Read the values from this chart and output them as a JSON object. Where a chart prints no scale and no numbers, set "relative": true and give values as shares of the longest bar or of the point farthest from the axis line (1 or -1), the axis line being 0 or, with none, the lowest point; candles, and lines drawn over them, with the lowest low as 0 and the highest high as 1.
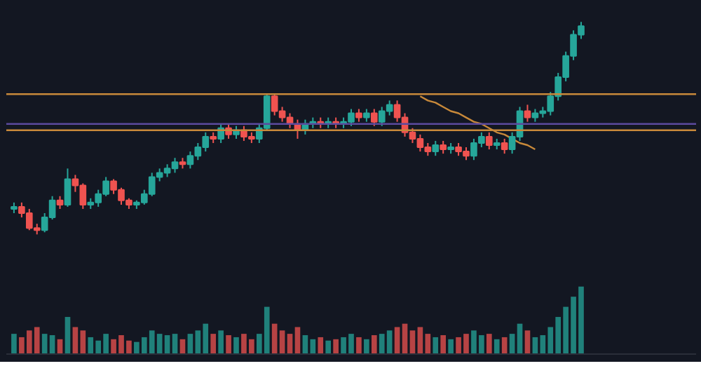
{
  "chart_data": [
    {
      "type": "candlestick",
      "relative": true,
      "colors": [
        "#26a69a",
        "#ef5350",
        "#ef5350",
        "#ef5350",
        "#26a69a",
        "#26a69a",
        "#ef5350",
        "#26a69a",
        "#ef5350",
        "#ef5350",
        "#26a69a",
        "#26a69a",
        "#26a69a",
        "#ef5350",
        "#ef5350",
        "#ef5350",
        "#26a69a",
        "#26a69a",
        "#26a69a",
        "#26a69a",
        "#26a69a",
        "#26a69a",
        "#ef5350",
        "#26a69a",
        "#26a69a",
        "#26a69a",
        "#ef5350",
        "#26a69a",
        "#ef5350",
        "#26a69a",
        "#ef5350",
        "#ef5350",
        "#26a69a",
        "#26a69a",
        "#ef5350",
        "#ef5350",
        "#ef5350",
        "#ef5350",
        "#26a69a",
        "#26a69a",
        "#ef5350",
        "#26a69a",
        "#ef5350",
        "#26a69a",
        "#26a69a",
        "#ef5350",
        "#26a69a",
        "#ef5350",
        "#26a69a",
        "#26a69a",
        "#ef5350",
        "#ef5350",
        "#ef5350",
        "#ef5350",
        "#ef5350",
        "#26a69a",
        "#ef5350",
        "#26a69a",
        "#ef5350",
        "#ef5350",
        "#26a69a",
        "#26a69a",
        "#ef5350",
        "#26a69a",
        "#ef5350",
        "#26a69a",
        "#26a69a",
        "#ef5350",
        "#26a69a",
        "#26a69a",
        "#26a69a",
        "#26a69a",
        "#26a69a",
        "#26a69a",
        "#26a69a"
      ],
      "categories": [
        null,
        null,
        null,
        null,
        null,
        null,
        null,
        null,
        null,
        null,
        null,
        null,
        null,
        null,
        null,
        null,
        null,
        null,
        null,
        null,
        null,
        null,
        null,
        null,
        null,
        null,
        null,
        null,
        null,
        null,
        null,
        null,
        null,
        null,
        null,
        null,
        null,
        null,
        null,
        null,
        null,
        null,
        null,
        null,
        null,
        null,
        null,
        null,
        null,
        null,
        null,
        null,
        null,
        null,
        null,
        null,
        null,
        null,
        null,
        null,
        null,
        null,
        null,
        null,
        null,
        null,
        null,
        null,
        null,
        null,
        null,
        null,
        null,
        null,
        null
      ],
      "ohlc": [
        [
          0.12,
          0.15,
          0.1,
          0.13
        ],
        [
          0.13,
          0.15,
          0.08,
          0.1
        ],
        [
          0.1,
          0.12,
          0.02,
          0.03
        ],
        [
          0.03,
          0.05,
          0.0,
          0.02
        ],
        [
          0.02,
          0.1,
          0.01,
          0.08
        ],
        [
          0.08,
          0.18,
          0.07,
          0.16
        ],
        [
          0.16,
          0.18,
          0.12,
          0.14
        ],
        [
          0.14,
          0.31,
          0.13,
          0.26
        ],
        [
          0.26,
          0.28,
          0.2,
          0.23
        ],
        [
          0.23,
          0.24,
          0.12,
          0.14
        ],
        [
          0.14,
          0.17,
          0.12,
          0.15
        ],
        [
          0.15,
          0.21,
          0.13,
          0.19
        ],
        [
          0.19,
          0.27,
          0.18,
          0.25
        ],
        [
          0.25,
          0.26,
          0.19,
          0.21
        ],
        [
          0.21,
          0.22,
          0.14,
          0.16
        ],
        [
          0.16,
          0.17,
          0.12,
          0.14
        ],
        [
          0.14,
          0.16,
          0.12,
          0.15
        ],
        [
          0.15,
          0.21,
          0.14,
          0.19
        ],
        [
          0.19,
          0.29,
          0.18,
          0.27
        ],
        [
          0.27,
          0.31,
          0.25,
          0.29
        ],
        [
          0.29,
          0.33,
          0.27,
          0.31
        ],
        [
          0.31,
          0.36,
          0.29,
          0.34
        ],
        [
          0.34,
          0.36,
          0.31,
          0.33
        ],
        [
          0.33,
          0.39,
          0.31,
          0.37
        ],
        [
          0.37,
          0.43,
          0.35,
          0.41
        ],
        [
          0.41,
          0.48,
          0.39,
          0.46
        ],
        [
          0.46,
          0.48,
          0.43,
          0.45
        ],
        [
          0.45,
          0.52,
          0.43,
          0.5
        ],
        [
          0.5,
          0.52,
          0.45,
          0.47
        ],
        [
          0.47,
          0.51,
          0.45,
          0.49
        ],
        [
          0.49,
          0.51,
          0.44,
          0.46
        ],
        [
          0.46,
          0.48,
          0.43,
          0.45
        ],
        [
          0.45,
          0.52,
          0.43,
          0.5
        ],
        [
          0.5,
          0.66,
          0.49,
          0.65
        ],
        [
          0.65,
          0.66,
          0.56,
          0.58
        ],
        [
          0.58,
          0.6,
          0.53,
          0.55
        ],
        [
          0.55,
          0.57,
          0.5,
          0.52
        ],
        [
          0.52,
          0.54,
          0.45,
          0.49
        ],
        [
          0.49,
          0.54,
          0.47,
          0.52
        ],
        [
          0.52,
          0.55,
          0.5,
          0.53
        ],
        [
          0.53,
          0.55,
          0.5,
          0.52
        ],
        [
          0.52,
          0.55,
          0.5,
          0.53
        ],
        [
          0.53,
          0.55,
          0.5,
          0.52
        ],
        [
          0.52,
          0.55,
          0.5,
          0.53
        ],
        [
          0.53,
          0.59,
          0.51,
          0.57
        ],
        [
          0.57,
          0.59,
          0.53,
          0.55
        ],
        [
          0.55,
          0.59,
          0.53,
          0.57
        ],
        [
          0.57,
          0.59,
          0.51,
          0.53
        ],
        [
          0.53,
          0.6,
          0.51,
          0.58
        ],
        [
          0.58,
          0.63,
          0.56,
          0.61
        ],
        [
          0.61,
          0.63,
          0.53,
          0.55
        ],
        [
          0.55,
          0.57,
          0.46,
          0.48
        ],
        [
          0.48,
          0.5,
          0.43,
          0.45
        ],
        [
          0.45,
          0.47,
          0.39,
          0.41
        ],
        [
          0.41,
          0.43,
          0.37,
          0.39
        ],
        [
          0.39,
          0.44,
          0.37,
          0.42
        ],
        [
          0.42,
          0.44,
          0.38,
          0.4
        ],
        [
          0.4,
          0.43,
          0.38,
          0.41
        ],
        [
          0.41,
          0.43,
          0.37,
          0.39
        ],
        [
          0.39,
          0.41,
          0.35,
          0.37
        ],
        [
          0.37,
          0.45,
          0.35,
          0.43
        ],
        [
          0.43,
          0.48,
          0.41,
          0.46
        ],
        [
          0.46,
          0.48,
          0.4,
          0.42
        ],
        [
          0.42,
          0.45,
          0.4,
          0.43
        ],
        [
          0.43,
          0.45,
          0.38,
          0.4
        ],
        [
          0.4,
          0.48,
          0.38,
          0.46
        ],
        [
          0.46,
          0.6,
          0.44,
          0.58
        ],
        [
          0.58,
          0.61,
          0.53,
          0.55
        ],
        [
          0.55,
          0.59,
          0.53,
          0.57
        ],
        [
          0.57,
          0.6,
          0.55,
          0.58
        ],
        [
          0.58,
          0.67,
          0.56,
          0.65
        ],
        [
          0.65,
          0.76,
          0.63,
          0.74
        ],
        [
          0.74,
          0.86,
          0.72,
          0.84
        ],
        [
          0.84,
          0.96,
          0.82,
          0.94
        ],
        [
          0.94,
          1.0,
          0.92,
          0.98
        ]
      ],
      "series": [
        {
          "type": "line",
          "color": "#c8893a",
          "values": [
            null,
            null,
            null,
            null,
            null,
            null,
            null,
            null,
            null,
            null,
            null,
            null,
            null,
            null,
            null,
            null,
            null,
            null,
            null,
            null,
            null,
            null,
            null,
            null,
            null,
            null,
            null,
            null,
            null,
            null,
            null,
            null,
            null,
            null,
            null,
            null,
            null,
            null,
            null,
            null,
            null,
            null,
            null,
            null,
            null,
            null,
            null,
            null,
            null,
            null,
            null,
            null,
            null,
            0.65,
            0.63,
            0.62,
            0.6,
            0.58,
            0.57,
            0.55,
            0.53,
            0.52,
            0.5,
            0.48,
            0.47,
            0.45,
            0.43,
            0.42,
            0.4,
            null,
            null,
            null,
            null,
            null,
            null
          ]
        }
      ],
      "ref_lines": [
        {
          "axis": "y",
          "value": 0.66,
          "color": "#c8893a"
        },
        {
          "axis": "y",
          "value": 0.49,
          "color": "#c8893a"
        },
        {
          "axis": "y",
          "value": 0.52,
          "color": "#5b4a9e"
        }
      ],
      "grid": false
    },
    {
      "type": "bar",
      "relative": true,
      "grid": false,
      "categories": [
        null,
        null,
        null,
        null,
        null,
        null,
        null,
        null,
        null,
        null,
        null,
        null,
        null,
        null,
        null,
        null,
        null,
        null,
        null,
        null,
        null,
        null,
        null,
        null,
        null,
        null,
        null,
        null,
        null,
        null,
        null,
        null,
        null,
        null,
        null,
        null,
        null,
        null,
        null,
        null,
        null,
        null,
        null,
        null,
        null,
        null,
        null,
        null,
        null,
        null,
        null,
        null,
        null,
        null,
        null,
        null,
        null,
        null,
        null,
        null,
        null,
        null,
        null,
        null,
        null,
        null,
        null,
        null,
        null,
        null,
        null,
        null,
        null,
        null,
        null
      ],
      "colors": [
        "#26a69a",
        "#ef5350",
        "#ef5350",
        "#ef5350",
        "#26a69a",
        "#26a69a",
        "#ef5350",
        "#26a69a",
        "#ef5350",
        "#ef5350",
        "#26a69a",
        "#26a69a",
        "#26a69a",
        "#ef5350",
        "#ef5350",
        "#ef5350",
        "#26a69a",
        "#26a69a",
        "#26a69a",
        "#26a69a",
        "#26a69a",
        "#26a69a",
        "#ef5350",
        "#26a69a",
        "#26a69a",
        "#26a69a",
        "#ef5350",
        "#26a69a",
        "#ef5350",
        "#26a69a",
        "#ef5350",
        "#ef5350",
        "#26a69a",
        "#26a69a",
        "#ef5350",
        "#ef5350",
        "#ef5350",
        "#ef5350",
        "#26a69a",
        "#26a69a",
        "#ef5350",
        "#26a69a",
        "#ef5350",
        "#26a69a",
        "#26a69a",
        "#ef5350",
        "#26a69a",
        "#ef5350",
        "#26a69a",
        "#26a69a",
        "#ef5350",
        "#ef5350",
        "#ef5350",
        "#ef5350",
        "#ef5350",
        "#26a69a",
        "#ef5350",
        "#26a69a",
        "#ef5350",
        "#ef5350",
        "#26a69a",
        "#26a69a",
        "#ef5350",
        "#26a69a",
        "#ef5350",
        "#26a69a",
        "#26a69a",
        "#ef5350",
        "#26a69a",
        "#26a69a",
        "#26a69a",
        "#26a69a",
        "#26a69a",
        "#26a69a",
        "#26a69a"
      ],
      "values": [
        0.3,
        0.25,
        0.35,
        0.4,
        0.3,
        0.28,
        0.22,
        0.55,
        0.4,
        0.35,
        0.25,
        0.2,
        0.3,
        0.22,
        0.28,
        0.2,
        0.18,
        0.25,
        0.35,
        0.3,
        0.28,
        0.3,
        0.22,
        0.3,
        0.35,
        0.45,
        0.3,
        0.35,
        0.28,
        0.25,
        0.3,
        0.22,
        0.3,
        0.7,
        0.45,
        0.35,
        0.3,
        0.4,
        0.28,
        0.22,
        0.25,
        0.2,
        0.22,
        0.25,
        0.3,
        0.25,
        0.22,
        0.28,
        0.3,
        0.35,
        0.4,
        0.45,
        0.35,
        0.4,
        0.3,
        0.25,
        0.28,
        0.22,
        0.25,
        0.3,
        0.35,
        0.28,
        0.3,
        0.22,
        0.25,
        0.3,
        0.45,
        0.35,
        0.25,
        0.28,
        0.4,
        0.55,
        0.7,
        0.85,
        1.0
      ]
    }
  ]
}
